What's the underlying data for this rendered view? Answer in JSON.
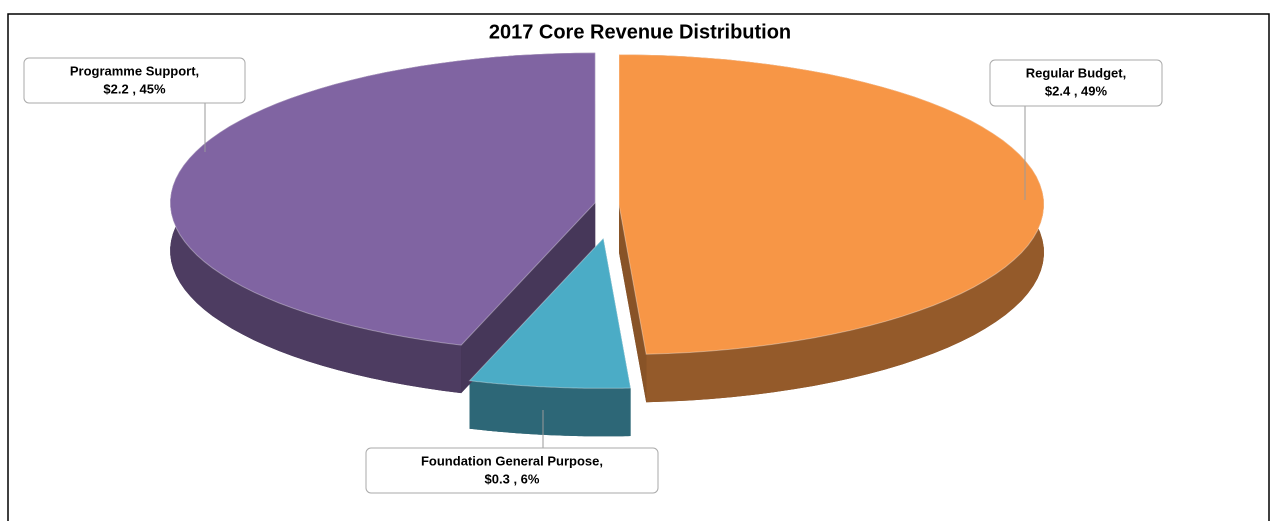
{
  "chart_data": {
    "type": "pie",
    "title": "2017 Core Revenue Distribution",
    "categories": [
      "Regular Budget,",
      "Foundation General Purpose,",
      "Programme Support,"
    ],
    "values": [
      2.4,
      0.3,
      2.2
    ],
    "value_labels": [
      "$2.4 , 49%",
      "$0.3 , 6%",
      "$2.2 , 45%"
    ],
    "colors": [
      "#f79646",
      "#4bacc6",
      "#8064a2"
    ]
  }
}
